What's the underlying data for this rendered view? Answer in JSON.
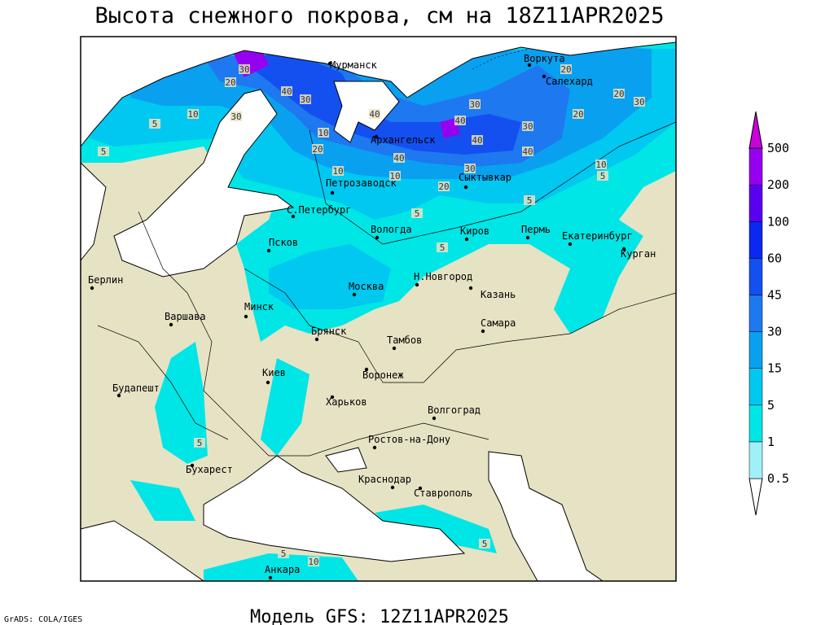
{
  "title": "Высота снежного покрова, см на 18Z11APR2025",
  "footer": "Модель GFS: 12Z11APR2025",
  "credit": "GrADS: COLA/IGES",
  "cities": [
    "Мурманск",
    "Воркута",
    "Салехард",
    "Архангельск",
    "Петрозаводск",
    "Сыктывкар",
    "С.Петербург",
    "Вологда",
    "Киров",
    "Пермь",
    "Екатеринбург",
    "Курган",
    "Псков",
    "Берлин",
    "Москва",
    "Н.Новгород",
    "Казань",
    "Варшава",
    "Минск",
    "Самара",
    "Брянск",
    "Тамбов",
    "Киев",
    "Воронеж",
    "Будапешт",
    "Харьков",
    "Волгоград",
    "Ростов-на-Дону",
    "Бухарест",
    "Краснодар",
    "Ставрополь",
    "Анкара"
  ],
  "contour_labels": [
    30,
    20,
    40,
    30,
    10,
    5,
    5,
    30,
    40,
    10,
    20,
    40,
    10,
    10,
    20,
    30,
    40,
    40,
    30,
    40,
    30,
    20,
    20,
    20,
    30,
    10,
    5,
    5,
    5,
    5,
    5,
    5,
    10,
    5
  ],
  "legend": {
    "levels": [
      0.5,
      1,
      5,
      15,
      30,
      45,
      60,
      100,
      200,
      500
    ],
    "colors": [
      "#ffffff",
      "#a0f0f8",
      "#00e6e6",
      "#00c8f0",
      "#0aa0f0",
      "#1e78f0",
      "#1450f0",
      "#0a28f0",
      "#5a00f0",
      "#9600f0",
      "#c800dc"
    ]
  }
}
